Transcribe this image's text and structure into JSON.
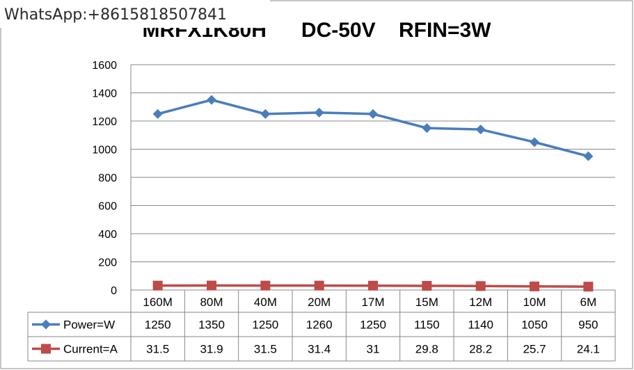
{
  "watermark": "WhatsApp:+8615818507841",
  "chart_data": {
    "type": "line",
    "title": "MRFX1K80H      DC-50V    RFIN=3W",
    "categories": [
      "160M",
      "80M",
      "40M",
      "20M",
      "17M",
      "15M",
      "12M",
      "10M",
      "6M"
    ],
    "series": [
      {
        "name": "Power=W",
        "values": [
          1250,
          1350,
          1250,
          1260,
          1250,
          1150,
          1140,
          1050,
          950
        ],
        "value_labels": [
          "1250",
          "1350",
          "1250",
          "1260",
          "1250",
          "1150",
          "1140",
          "1050",
          "950"
        ],
        "color": "#4a7ebb",
        "marker": "diamond"
      },
      {
        "name": "Current=A",
        "values": [
          31.5,
          31.9,
          31.5,
          31.4,
          31,
          29.8,
          28.2,
          25.7,
          24.1
        ],
        "value_labels": [
          "31.5",
          "31.9",
          "31.5",
          "31.4",
          "31",
          "29.8",
          "28.2",
          "25.7",
          "24.1"
        ],
        "color": "#be4b48",
        "marker": "square"
      }
    ],
    "ylim": [
      0,
      1600
    ],
    "yticks": [
      "0",
      "200",
      "400",
      "600",
      "800",
      "1000",
      "1200",
      "1400",
      "1600"
    ],
    "ytick_values": [
      0,
      200,
      400,
      600,
      800,
      1000,
      1200,
      1400,
      1600
    ],
    "grid": true,
    "legend": "data-table-left",
    "xlabel": "",
    "ylabel": ""
  }
}
